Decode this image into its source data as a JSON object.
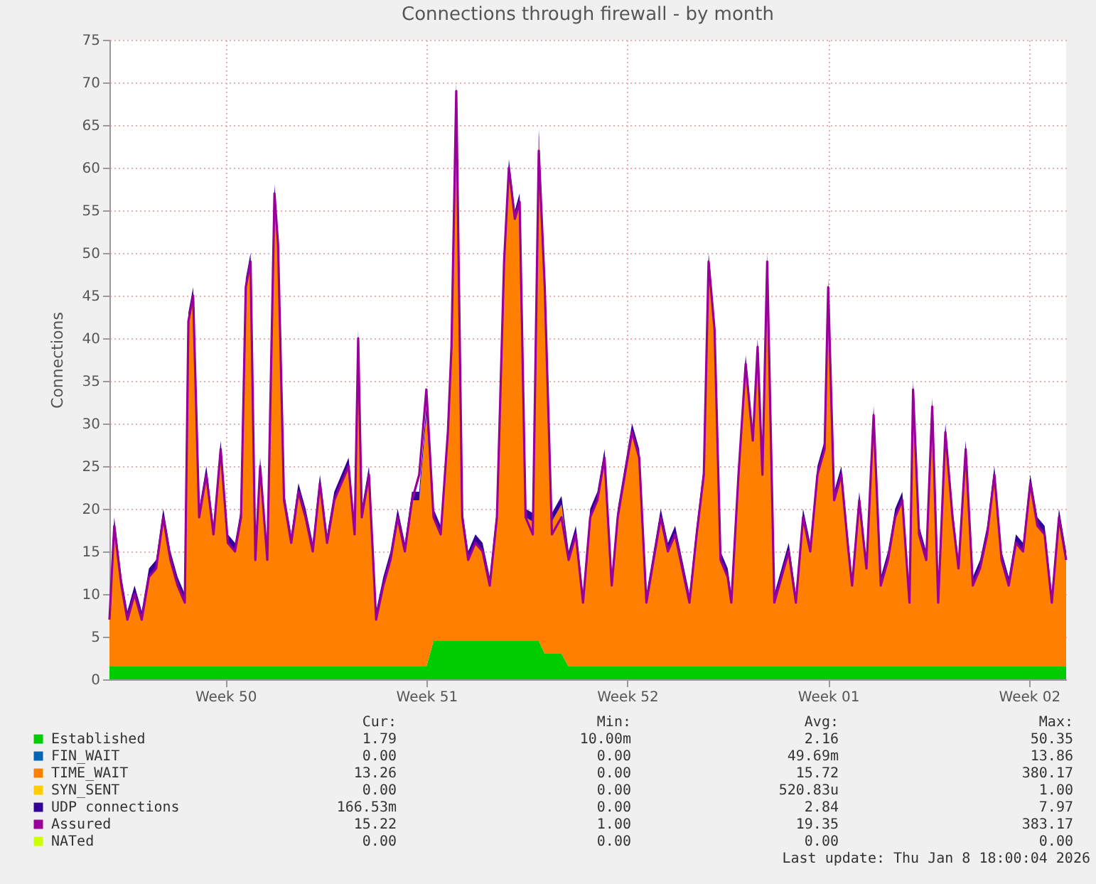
{
  "chart_data": {
    "type": "area",
    "stacked": true,
    "title": "Connections through firewall - by month",
    "ylabel": "Connections",
    "grid": true,
    "legend": "bottom",
    "xlim": [
      "2025-12-06T12:00",
      "2026-01-08T20:00"
    ],
    "xticks": [
      {
        "value": "2025-12-10T13:00",
        "label": "Week 50"
      },
      {
        "value": "2025-12-17T13:00",
        "label": "Week 51"
      },
      {
        "value": "2025-12-24T13:00",
        "label": "Week 52"
      },
      {
        "value": "2025-12-31T13:00",
        "label": "Week 01"
      },
      {
        "value": "2026-01-07T13:00",
        "label": "Week 02"
      }
    ],
    "ylim": [
      0,
      75
    ],
    "yticks": [
      0,
      5,
      10,
      15,
      20,
      25,
      30,
      35,
      40,
      45,
      50,
      55,
      60,
      65,
      70,
      75
    ],
    "x": [
      "2025-12-06T12:00",
      "2025-12-06T16:00",
      "2025-12-06T22:00",
      "2025-12-07T03:00",
      "2025-12-07T09:00",
      "2025-12-07T15:00",
      "2025-12-07T21:00",
      "2025-12-08T03:00",
      "2025-12-08T09:00",
      "2025-12-08T15:00",
      "2025-12-08T21:00",
      "2025-12-09T03:00",
      "2025-12-09T06:00",
      "2025-12-09T10:00",
      "2025-12-09T15:00",
      "2025-12-09T21:00",
      "2025-12-10T03:00",
      "2025-12-10T09:00",
      "2025-12-10T15:00",
      "2025-12-10T21:00",
      "2025-12-11T02:00",
      "2025-12-11T06:00",
      "2025-12-11T10:00",
      "2025-12-11T14:00",
      "2025-12-11T18:00",
      "2025-12-12T00:00",
      "2025-12-12T06:00",
      "2025-12-12T09:00",
      "2025-12-12T14:00",
      "2025-12-12T20:00",
      "2025-12-13T02:00",
      "2025-12-13T08:00",
      "2025-12-13T14:00",
      "2025-12-13T20:00",
      "2025-12-14T02:00",
      "2025-12-14T08:00",
      "2025-12-14T14:00",
      "2025-12-14T20:00",
      "2025-12-15T01:00",
      "2025-12-15T04:00",
      "2025-12-15T07:00",
      "2025-12-15T13:00",
      "2025-12-15T19:00",
      "2025-12-16T01:00",
      "2025-12-16T07:00",
      "2025-12-16T13:00",
      "2025-12-16T19:00",
      "2025-12-17T01:00",
      "2025-12-17T07:00",
      "2025-12-17T13:00",
      "2025-12-17T19:00",
      "2025-12-18T01:00",
      "2025-12-18T07:00",
      "2025-12-18T10:00",
      "2025-12-18T14:00",
      "2025-12-18T19:00",
      "2025-12-19T00:00",
      "2025-12-19T06:00",
      "2025-12-19T12:00",
      "2025-12-19T18:00",
      "2025-12-20T00:00",
      "2025-12-20T06:00",
      "2025-12-20T10:00",
      "2025-12-20T15:00",
      "2025-12-20T19:00",
      "2025-12-21T00:00",
      "2025-12-21T06:00",
      "2025-12-21T11:00",
      "2025-12-21T16:00",
      "2025-12-21T22:00",
      "2025-12-22T06:00",
      "2025-12-22T12:00",
      "2025-12-22T18:00",
      "2025-12-23T00:00",
      "2025-12-23T06:00",
      "2025-12-23T12:00",
      "2025-12-23T18:00",
      "2025-12-24T00:00",
      "2025-12-24T05:00",
      "2025-12-24T11:00",
      "2025-12-24T17:00",
      "2025-12-24T23:00",
      "2025-12-25T05:00",
      "2025-12-25T11:00",
      "2025-12-25T17:00",
      "2025-12-25T23:00",
      "2025-12-26T05:00",
      "2025-12-26T11:00",
      "2025-12-26T17:00",
      "2025-12-26T23:00",
      "2025-12-27T05:00",
      "2025-12-27T09:00",
      "2025-12-27T14:00",
      "2025-12-27T19:00",
      "2025-12-28T01:00",
      "2025-12-28T04:00",
      "2025-12-28T10:00",
      "2025-12-28T16:00",
      "2025-12-28T22:00",
      "2025-12-29T02:00",
      "2025-12-29T06:00",
      "2025-12-29T10:00",
      "2025-12-29T16:00",
      "2025-12-29T22:00",
      "2025-12-30T04:00",
      "2025-12-30T10:00",
      "2025-12-30T16:00",
      "2025-12-30T22:00",
      "2025-12-31T04:00",
      "2025-12-31T10:00",
      "2025-12-31T13:00",
      "2025-12-31T18:00",
      "2026-01-01T00:00",
      "2026-01-01T06:00",
      "2026-01-01T09:00",
      "2026-01-01T15:00",
      "2026-01-01T21:00",
      "2026-01-02T03:00",
      "2026-01-02T09:00",
      "2026-01-02T15:00",
      "2026-01-02T21:00",
      "2026-01-03T03:00",
      "2026-01-03T09:00",
      "2026-01-03T12:00",
      "2026-01-03T17:00",
      "2026-01-03T23:00",
      "2026-01-04T04:00",
      "2026-01-04T09:00",
      "2026-01-04T15:00",
      "2026-01-04T21:00",
      "2026-01-05T02:00",
      "2026-01-05T08:00",
      "2026-01-05T14:00",
      "2026-01-05T20:00",
      "2026-01-06T02:00",
      "2026-01-06T08:00",
      "2026-01-06T14:00",
      "2026-01-06T20:00",
      "2026-01-07T02:00",
      "2026-01-07T08:00",
      "2026-01-07T14:00",
      "2026-01-07T20:00",
      "2026-01-08T02:00",
      "2026-01-08T08:00",
      "2026-01-08T14:00",
      "2026-01-08T20:00"
    ],
    "series": [
      {
        "name": "Established",
        "color": "#00cc00",
        "values": [
          1.5,
          1.5,
          1.5,
          1.5,
          1.5,
          1.5,
          1.5,
          1.5,
          1.5,
          1.5,
          1.5,
          1.5,
          1.5,
          1.5,
          1.5,
          1.5,
          1.5,
          1.5,
          1.5,
          1.5,
          1.5,
          1.5,
          1.5,
          1.5,
          1.5,
          1.5,
          1.5,
          1.5,
          1.5,
          1.5,
          1.5,
          1.5,
          1.5,
          1.5,
          1.5,
          1.5,
          1.5,
          1.5,
          1.5,
          1.5,
          1.5,
          1.5,
          1.5,
          1.5,
          1.5,
          1.5,
          1.5,
          1.5,
          1.5,
          1.5,
          4.5,
          4.5,
          4.5,
          4.5,
          4.5,
          4.5,
          4.5,
          4.5,
          4.5,
          4.5,
          4.5,
          4.5,
          4.5,
          4.5,
          4.5,
          4.5,
          4.5,
          4.5,
          3,
          3,
          3,
          1.5,
          1.5,
          1.5,
          1.5,
          1.5,
          1.5,
          1.5,
          1.5,
          1.5,
          1.5,
          1.5,
          1.5,
          1.5,
          1.5,
          1.5,
          1.5,
          1.5,
          1.5,
          1.5,
          1.5,
          1.5,
          1.5,
          1.5,
          1.5,
          1.5,
          1.5,
          1.5,
          1.5,
          1.5,
          1.5,
          1.5,
          1.5,
          1.5,
          1.5,
          1.5,
          1.5,
          1.5,
          1.5,
          1.5,
          1.5,
          1.5,
          1.5,
          1.5,
          1.5,
          1.5,
          1.5,
          1.5,
          1.5,
          1.5,
          1.5,
          1.5,
          1.5,
          1.5,
          1.5,
          1.5,
          1.5,
          1.5,
          1.5,
          1.5,
          1.5,
          1.5,
          1.5,
          1.5,
          1.5,
          1.5,
          1.5,
          1.5,
          1.5,
          1.5,
          1.5,
          1.5,
          1.5,
          1.5,
          1.5,
          1.5
        ]
      },
      {
        "name": "FIN_WAIT",
        "color": "#0066b3",
        "values": [
          null,
          null,
          null,
          null,
          null,
          null,
          null,
          null,
          null,
          null,
          null,
          null,
          null,
          null,
          null,
          null,
          null,
          null,
          null,
          null,
          null,
          null,
          null,
          null,
          null,
          null,
          null,
          null,
          null,
          null,
          null,
          null,
          null,
          null,
          null,
          null,
          null,
          null,
          null,
          null,
          null,
          null,
          null,
          null,
          null,
          null,
          null,
          null,
          null,
          null,
          null,
          null,
          null,
          null,
          null,
          null,
          null,
          null,
          null,
          null,
          null,
          null,
          null,
          null,
          null,
          null,
          null,
          null,
          null,
          null,
          null,
          null,
          null,
          null,
          null,
          null,
          null,
          null,
          null,
          null,
          null,
          null,
          null,
          null,
          null,
          null,
          null,
          null,
          null,
          null,
          null,
          null,
          null,
          null,
          null,
          null,
          null,
          null,
          null,
          null,
          null,
          null,
          null,
          null,
          null,
          null,
          null,
          null,
          null,
          null,
          null,
          null,
          null,
          null,
          null,
          null,
          null,
          null,
          null,
          null,
          null,
          null,
          null,
          null,
          null,
          null,
          null,
          null,
          null,
          null,
          null,
          null,
          null,
          null,
          null,
          null,
          null,
          null,
          null,
          null,
          null,
          null,
          null,
          null,
          null,
          null
        ]
      },
      {
        "name": "TIME_WAIT",
        "color": "#ff8000",
        "values": [
          5.5,
          16.5,
          9.5,
          5.5,
          8.5,
          5.5,
          10.5,
          11.5,
          17.5,
          12.5,
          9.5,
          7.5,
          40.5,
          43.5,
          17.5,
          22.5,
          15.5,
          25.5,
          14.5,
          13.5,
          17.5,
          44.5,
          47.5,
          12.5,
          23.5,
          12.5,
          55.5,
          49.5,
          19.5,
          14.5,
          20.5,
          17.5,
          13.5,
          21.5,
          14.5,
          19.5,
          21.5,
          23.5,
          15.5,
          38.5,
          17.5,
          22.5,
          5.5,
          9.5,
          12.5,
          17.5,
          13.5,
          19.5,
          19.5,
          29.5,
          14.5,
          12.5,
          24.5,
          34.5,
          64.5,
          14.5,
          9.5,
          11.5,
          10.5,
          6.5,
          14.5,
          44.5,
          55.5,
          49.5,
          51.5,
          14.5,
          14,
          59,
          43,
          15.5,
          17.5,
          12.5,
          15.5,
          7.5,
          17.5,
          19.5,
          24.5,
          9.5,
          17.5,
          22.5,
          27.5,
          24.5,
          7.5,
          12.5,
          17.5,
          13.5,
          15.5,
          11.5,
          7.5,
          15.5,
          22.5,
          47.5,
          39.5,
          12.5,
          10.5,
          7.5,
          22.5,
          35.5,
          26.5,
          37.5,
          22.5,
          47.5,
          7.5,
          10.5,
          13.5,
          7.5,
          17.5,
          13.5,
          22.5,
          25.5,
          44.5,
          19.5,
          22.5,
          13.5,
          9.5,
          19.5,
          11.5,
          29.5,
          9.5,
          12.5,
          17.5,
          19.5,
          7.5,
          32.5,
          15.5,
          12.5,
          30.5,
          7.5,
          27.5,
          17.5,
          11.5,
          25.5,
          9.5,
          11.5,
          15.5,
          22.5,
          12.5,
          9.5,
          14.5,
          13.5,
          21.5,
          16.5,
          15.5,
          7.5,
          17.5,
          12.5
        ]
      },
      {
        "name": "SYN_SENT",
        "color": "#ffcc00",
        "values": [
          null,
          null,
          null,
          null,
          null,
          null,
          null,
          null,
          null,
          null,
          null,
          null,
          null,
          null,
          null,
          null,
          null,
          null,
          null,
          null,
          null,
          null,
          null,
          null,
          null,
          null,
          null,
          null,
          null,
          null,
          null,
          null,
          null,
          null,
          null,
          null,
          null,
          null,
          null,
          null,
          null,
          null,
          null,
          null,
          null,
          null,
          null,
          null,
          null,
          null,
          null,
          null,
          null,
          null,
          null,
          null,
          null,
          null,
          null,
          null,
          null,
          null,
          null,
          null,
          null,
          null,
          null,
          null,
          null,
          null,
          null,
          null,
          null,
          null,
          null,
          null,
          null,
          null,
          null,
          null,
          null,
          null,
          null,
          null,
          null,
          null,
          null,
          null,
          null,
          null,
          null,
          null,
          null,
          null,
          null,
          null,
          null,
          null,
          null,
          null,
          null,
          null,
          null,
          null,
          null,
          null,
          null,
          null,
          null,
          null,
          null,
          null,
          null,
          null,
          null,
          null,
          null,
          null,
          null,
          null,
          null,
          null,
          null,
          null,
          null,
          null,
          null,
          null,
          null,
          null,
          null,
          null,
          null,
          null,
          null,
          null,
          null,
          null,
          null,
          null,
          null,
          null,
          null,
          null,
          null,
          null
        ]
      },
      {
        "name": "UDP connections",
        "color": "#330099",
        "values": [
          1,
          1,
          1,
          1,
          1,
          1,
          1,
          1,
          1,
          1,
          1,
          1,
          1,
          1,
          1,
          1,
          1,
          1,
          1,
          1,
          1,
          1,
          1,
          1,
          1,
          1,
          1,
          1,
          1,
          1,
          1,
          1,
          1,
          1,
          1,
          1,
          1,
          1,
          1,
          1,
          1,
          1,
          1,
          1,
          1,
          1,
          1,
          1,
          1,
          1,
          1,
          1,
          1,
          1,
          1,
          1,
          1,
          1,
          1,
          1,
          1,
          1,
          1,
          1,
          1,
          1,
          1,
          1,
          1,
          1,
          1,
          1,
          1,
          1,
          1,
          1,
          1,
          1,
          1,
          1,
          1,
          1,
          1,
          1,
          1,
          1,
          1,
          1,
          1,
          1,
          1,
          1,
          1,
          1,
          1,
          1,
          1,
          1,
          1,
          1,
          1,
          1,
          1,
          1,
          1,
          1,
          1,
          1,
          1,
          1,
          1,
          1,
          1,
          1,
          1,
          1,
          1,
          1,
          1,
          1,
          1,
          1,
          1,
          1,
          1,
          1,
          1,
          1,
          1,
          1,
          1,
          1,
          1,
          1,
          1,
          1,
          1,
          1,
          1,
          1,
          1,
          1,
          1,
          1,
          1,
          1
        ]
      },
      {
        "name": "Assured",
        "color": "#990099",
        "type": "line",
        "values": [
          7,
          18,
          11,
          7,
          10,
          7,
          12,
          13,
          19,
          14,
          11,
          9,
          42,
          45,
          19,
          24,
          17,
          27,
          16,
          15,
          19,
          46,
          49,
          14,
          25,
          14,
          57,
          51,
          21,
          16,
          22,
          19,
          15,
          23,
          16,
          21,
          23,
          25,
          17,
          40,
          19,
          24,
          7,
          11,
          14,
          19,
          15,
          21,
          24,
          34,
          19,
          17,
          29,
          39,
          69,
          19,
          14,
          16,
          15,
          11,
          19,
          49,
          60,
          54,
          56,
          19,
          17,
          62,
          46,
          17,
          19,
          14,
          17,
          9,
          19,
          21,
          26,
          11,
          19,
          24,
          29,
          26,
          9,
          14,
          19,
          15,
          17,
          13,
          9,
          17,
          24,
          49,
          41,
          14,
          12,
          9,
          24,
          37,
          28,
          39,
          24,
          49,
          9,
          12,
          15,
          9,
          19,
          15,
          24,
          27,
          46,
          21,
          24,
          15,
          11,
          21,
          13,
          31,
          11,
          14,
          19,
          21,
          9,
          34,
          17,
          14,
          32,
          9,
          29,
          19,
          13,
          27,
          11,
          13,
          17,
          24,
          14,
          11,
          16,
          15,
          23,
          18,
          17,
          9,
          19,
          14
        ]
      },
      {
        "name": "NATed",
        "color": "#ccff00",
        "values": [
          null,
          null,
          null,
          null,
          null,
          null,
          null,
          null,
          null,
          null,
          null,
          null,
          null,
          null,
          null,
          null,
          null,
          null,
          null,
          null,
          null,
          null,
          null,
          null,
          null,
          null,
          null,
          null,
          null,
          null,
          null,
          null,
          null,
          null,
          null,
          null,
          null,
          null,
          null,
          null,
          null,
          null,
          null,
          null,
          null,
          null,
          null,
          null,
          null,
          null,
          null,
          null,
          null,
          null,
          null,
          null,
          null,
          null,
          null,
          null,
          null,
          null,
          null,
          null,
          null,
          null,
          null,
          null,
          null,
          null,
          null,
          null,
          null,
          null,
          null,
          null,
          null,
          null,
          null,
          null,
          null,
          null,
          null,
          null,
          null,
          null,
          null,
          null,
          null,
          null,
          null,
          null,
          null,
          null,
          null,
          null,
          null,
          null,
          null,
          null,
          null,
          null,
          null,
          null,
          null,
          null,
          null,
          null,
          null,
          null,
          null,
          null,
          null,
          null,
          null,
          null,
          null,
          null,
          null,
          null,
          null,
          null,
          null,
          null,
          null,
          null,
          null,
          null,
          null,
          null,
          null,
          null,
          null,
          null,
          null,
          null,
          null,
          null,
          null,
          null,
          null,
          null,
          null,
          null,
          null,
          null
        ]
      }
    ],
    "annotations": [
      "Cur:",
      "Min:",
      "Avg:",
      "Max:",
      "1.79",
      "10.00m",
      "2.16",
      "50.35",
      "0.00",
      "0.00",
      "49.69m",
      "13.86",
      "13.26",
      "0.00",
      "15.72",
      "380.17",
      "0.00",
      "0.00",
      "520.83u",
      "1.00",
      "166.53m",
      "0.00",
      "2.84",
      "7.97",
      "15.22",
      "1.00",
      "19.35",
      "383.17",
      "0.00",
      "0.00",
      "0.00",
      "0.00",
      "Last update: Thu Jan  8 18:00:04 2026"
    ]
  }
}
